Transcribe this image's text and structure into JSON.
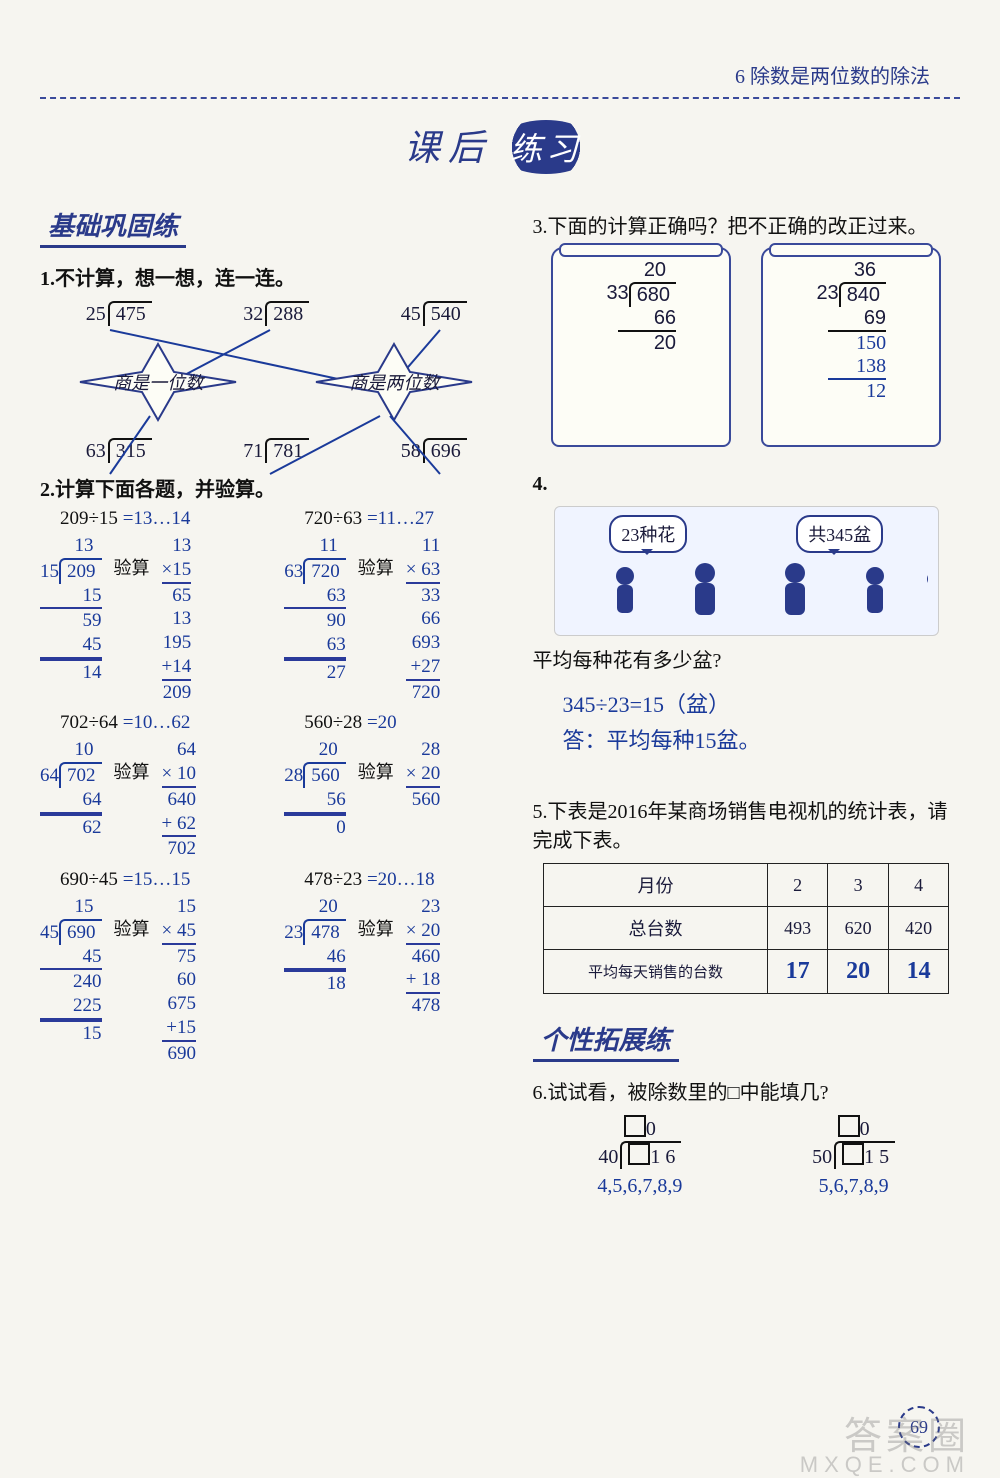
{
  "colors": {
    "ink": "#1a1a3a",
    "blue": "#2a3a8a",
    "handBlue": "#1a3a9a",
    "bg": "#f6f5f0"
  },
  "header": {
    "chapter": "6  除数是两位数的除法"
  },
  "title": {
    "a": "课后",
    "b": "练习"
  },
  "left": {
    "basicsHead": "基础巩固练",
    "q1": {
      "stem": "1.不计算，想一想，连一连。",
      "top": [
        {
          "divisor": "25",
          "dividend": "475"
        },
        {
          "divisor": "32",
          "dividend": "288"
        },
        {
          "divisor": "45",
          "dividend": "540"
        }
      ],
      "stars": {
        "left": "商是一位数",
        "right": "商是两位数"
      },
      "bottom": [
        {
          "divisor": "63",
          "dividend": "315"
        },
        {
          "divisor": "71",
          "dividend": "781"
        },
        {
          "divisor": "58",
          "dividend": "696"
        }
      ]
    },
    "q2": {
      "stem": "2.计算下面各题，并验算。",
      "items": [
        {
          "expr": "209÷15",
          "ans": "=13…14",
          "div": {
            "divisor": "15",
            "dividend": "209",
            "q": "13",
            "steps": [
              "15",
              "59",
              "45",
              "14"
            ]
          },
          "checkLabel": "验算",
          "check": [
            "13",
            "×15",
            "65",
            "13",
            "195",
            "+14",
            "209"
          ]
        },
        {
          "expr": "720÷63",
          "ans": "=11…27",
          "div": {
            "divisor": "63",
            "dividend": "720",
            "q": "11",
            "steps": [
              "63",
              "90",
              "63",
              "27"
            ]
          },
          "checkLabel": "验算",
          "check": [
            "11",
            "× 63",
            "33",
            "66",
            "693",
            "+27",
            "720"
          ]
        },
        {
          "expr": "702÷64",
          "ans": "=10…62",
          "div": {
            "divisor": "64",
            "dividend": "702",
            "q": "10",
            "steps": [
              "64",
              "62"
            ]
          },
          "checkLabel": "验算",
          "check": [
            "64",
            "× 10",
            "640",
            "+ 62",
            "702"
          ]
        },
        {
          "expr": "560÷28",
          "ans": "=20",
          "div": {
            "divisor": "28",
            "dividend": "560",
            "q": "20",
            "steps": [
              "56",
              "0"
            ]
          },
          "checkLabel": "验算",
          "check": [
            "28",
            "× 20",
            "560"
          ]
        },
        {
          "expr": "690÷45",
          "ans": "=15…15",
          "div": {
            "divisor": "45",
            "dividend": "690",
            "q": "15",
            "steps": [
              "45",
              "240",
              "225",
              "15"
            ]
          },
          "checkLabel": "验算",
          "check": [
            "15",
            "× 45",
            "75",
            "60",
            "675",
            "+15",
            "690"
          ]
        },
        {
          "expr": "478÷23",
          "ans": "=20…18",
          "div": {
            "divisor": "23",
            "dividend": "478",
            "q": "20",
            "steps": [
              "46",
              "18"
            ]
          },
          "checkLabel": "验算",
          "check": [
            "23",
            "× 20",
            "460",
            "+ 18",
            "478"
          ]
        }
      ]
    }
  },
  "right": {
    "q3": {
      "stem": "3.下面的计算正确吗？把不正确的改正过来。",
      "scrollA": {
        "q": "20",
        "divisor": "33",
        "dividend": "680",
        "lines": [
          "66",
          "20"
        ]
      },
      "scrollB": {
        "q": "36",
        "divisor": "23",
        "dividend": "840",
        "lines": [
          "69",
          "150",
          "138",
          "12"
        ],
        "handLines": [
          "150",
          "138",
          "12"
        ]
      }
    },
    "q4": {
      "num": "4.",
      "bubbleA": "23种花",
      "bubbleB": "共345盆",
      "question": "平均每种花有多少盆?",
      "calc": "345÷23=15（盆）",
      "answer": "答：平均每种15盆。"
    },
    "q5": {
      "stem": "5.下表是2016年某商场销售电视机的统计表，请完成下表。",
      "headers": [
        "月份",
        "2",
        "3",
        "4"
      ],
      "row1Label": "总台数",
      "row1": [
        "493",
        "620",
        "420"
      ],
      "row2Label": "平均每天销售的台数",
      "row2": [
        "17",
        "20",
        "14"
      ]
    },
    "extHead": "个性拓展练",
    "q6": {
      "stem": "6.试试看，被除数里的□中能填几?",
      "a": {
        "divisor": "40",
        "suffix": "1 6",
        "ans": "4,5,6,7,8,9"
      },
      "b": {
        "divisor": "50",
        "suffix": "1 5",
        "ans": "5,6,7,8,9"
      }
    }
  },
  "pageNum": "69",
  "watermark": "答案圈",
  "watermarkUrl": "MXQE.COM"
}
